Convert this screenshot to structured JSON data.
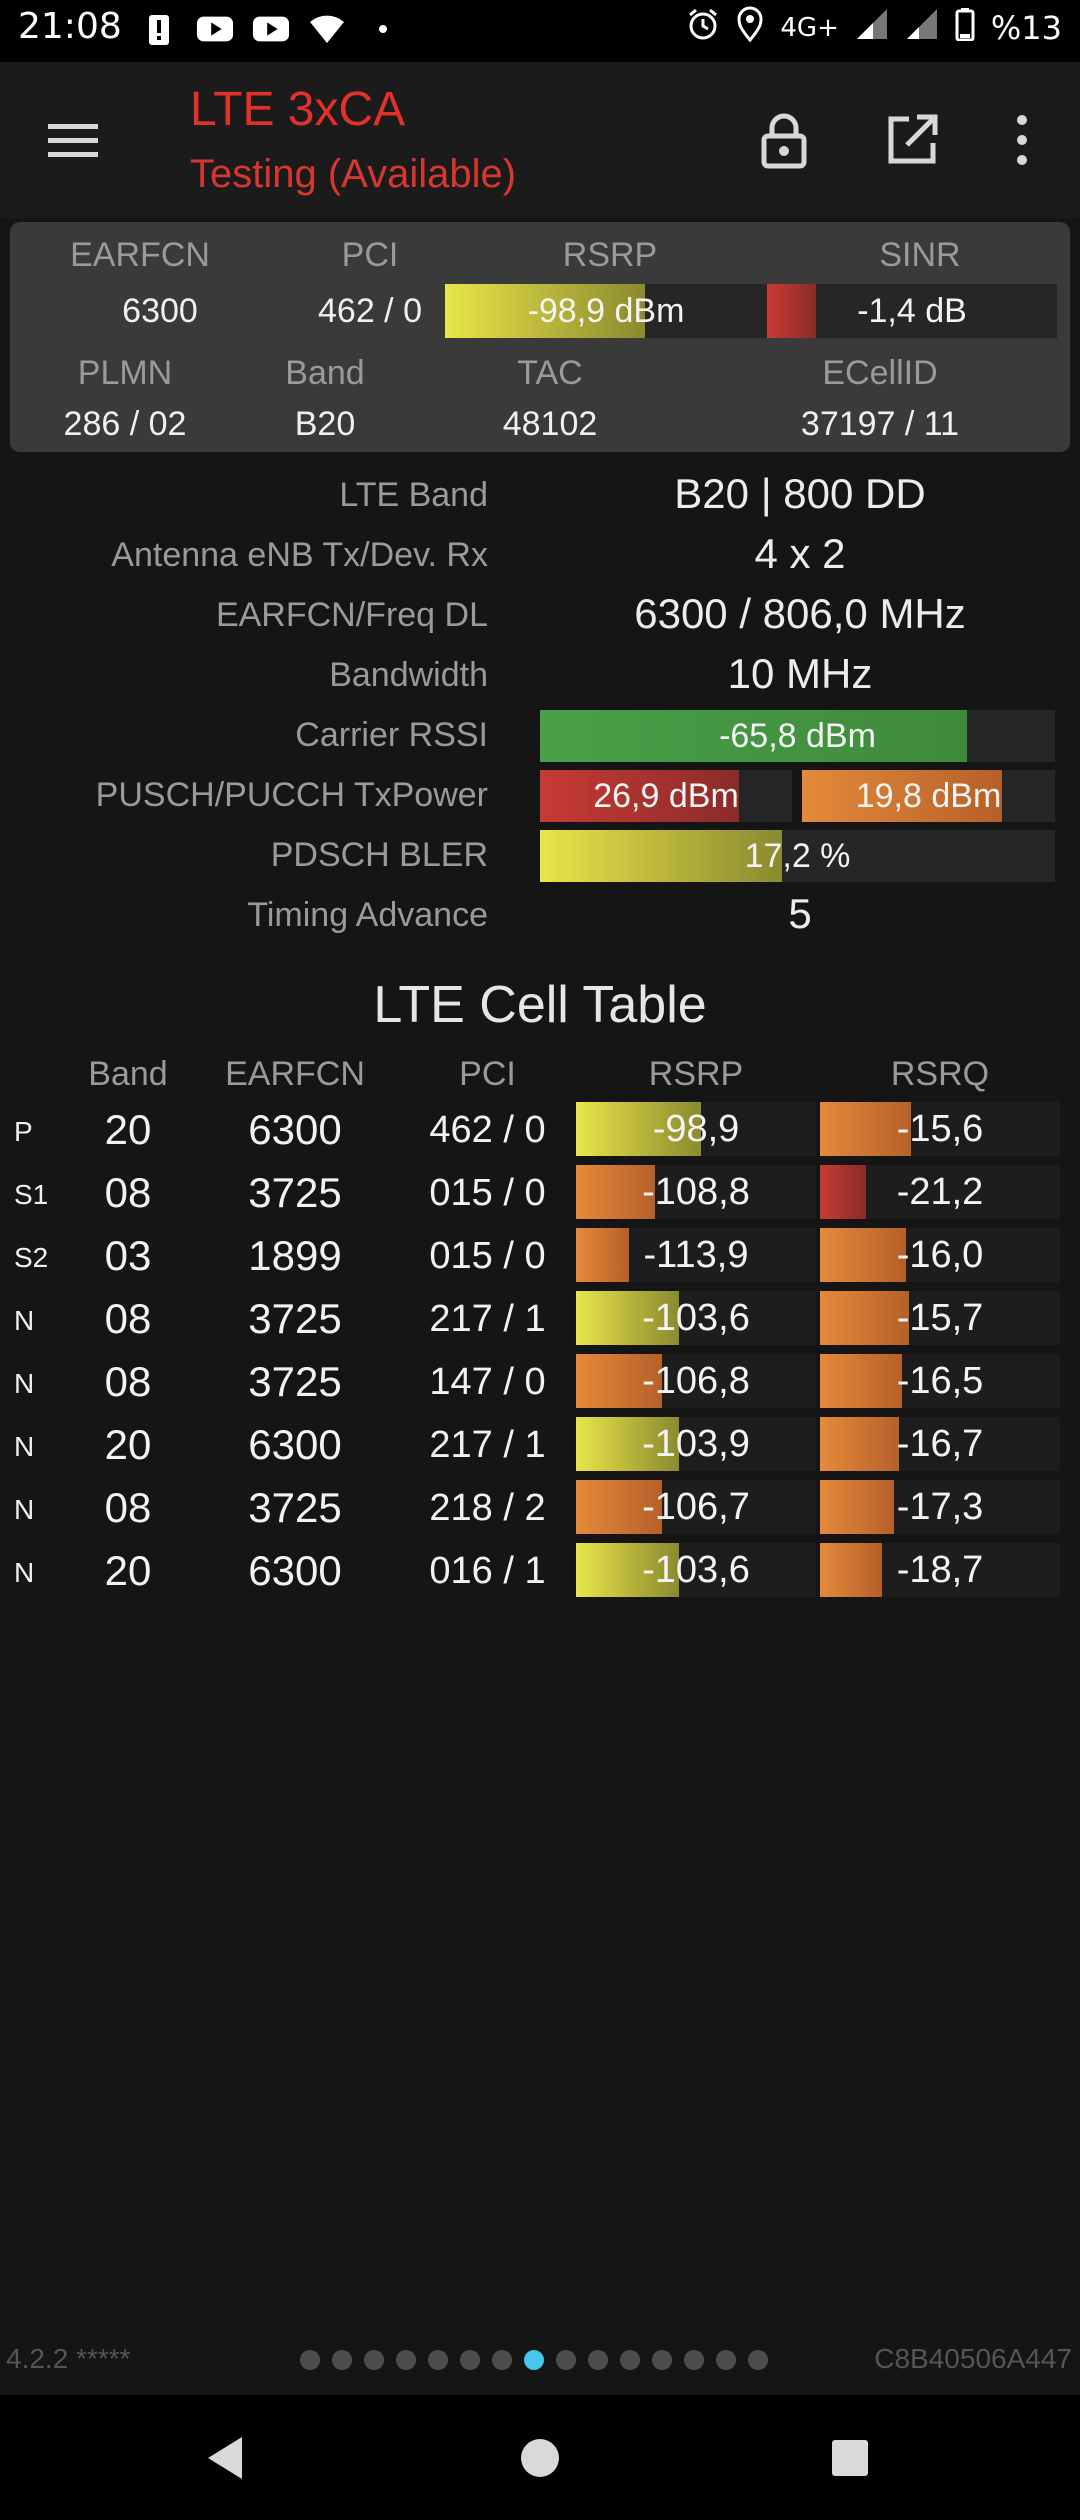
{
  "status_bar": {
    "time": "21:08",
    "network": "4G+",
    "battery": "%13",
    "left_icons": [
      "alert-icon",
      "youtube-icon",
      "youtube-icon",
      "wifi-icon",
      "dot-icon"
    ],
    "right_icons": [
      "alarm-icon",
      "location-icon",
      "signal-icon",
      "signal-icon",
      "battery-icon"
    ]
  },
  "app_bar": {
    "title": "LTE 3xCA",
    "subtitle": "Testing (Available)",
    "accent_color": "#e3302a",
    "icons": [
      "menu-icon",
      "lock-icon",
      "open-external-icon",
      "more-vert-icon"
    ]
  },
  "summary": {
    "labels": {
      "earfcn": "EARFCN",
      "pci": "PCI",
      "rsrp": "RSRP",
      "sinr": "SINR",
      "plmn": "PLMN",
      "band": "Band",
      "tac": "TAC",
      "ecellid": "ECellID"
    },
    "earfcn": "6300",
    "pci": "462 / 0",
    "rsrp": "-98,9 dBm",
    "rsrp_level": 0.62,
    "sinr": "-1,4 dB",
    "sinr_level": 0.17,
    "plmn": "286 / 02",
    "band": "B20",
    "tac": "48102",
    "ecellid": "37197 / 11"
  },
  "details": {
    "lte_band": {
      "label": "LTE Band",
      "value": "B20 | 800 DD"
    },
    "antenna": {
      "label": "Antenna eNB Tx/Dev. Rx",
      "value": "4 x 2"
    },
    "freq": {
      "label": "EARFCN/Freq DL",
      "value": "6300 / 806,0 MHz"
    },
    "bandwidth": {
      "label": "Bandwidth",
      "value": "10 MHz"
    },
    "rssi": {
      "label": "Carrier RSSI",
      "value": "-65,8 dBm",
      "level": 0.83
    },
    "txpower": {
      "label": "PUSCH/PUCCH TxPower",
      "pusch": "26,9 dBm",
      "pusch_level": 0.79,
      "pucch": "19,8 dBm",
      "pucch_level": 0.79
    },
    "bler": {
      "label": "PDSCH BLER",
      "value": "17,2 %",
      "level": 0.47
    },
    "timing_advance": {
      "label": "Timing Advance",
      "value": "5"
    }
  },
  "cell_table": {
    "title": "LTE Cell Table",
    "headers": [
      "Band",
      "EARFCN",
      "PCI",
      "RSRP",
      "RSRQ"
    ],
    "rows": [
      {
        "type": "P",
        "band": "20",
        "earfcn": "6300",
        "pci": "462 / 0",
        "rsrp": "-98,9",
        "rsrp_level": 0.52,
        "rsrp_color": "yellow",
        "rsrq": "-15,6",
        "rsrq_level": 0.38,
        "rsrq_color": "orange"
      },
      {
        "type": "S1",
        "band": "08",
        "earfcn": "3725",
        "pci": "015 / 0",
        "rsrp": "-108,8",
        "rsrp_level": 0.33,
        "rsrp_color": "orange",
        "rsrq": "-21,2",
        "rsrq_level": 0.19,
        "rsrq_color": "red"
      },
      {
        "type": "S2",
        "band": "03",
        "earfcn": "1899",
        "pci": "015 / 0",
        "rsrp": "-113,9",
        "rsrp_level": 0.22,
        "rsrp_color": "orange",
        "rsrq": "-16,0",
        "rsrq_level": 0.36,
        "rsrq_color": "orange"
      },
      {
        "type": "N",
        "band": "08",
        "earfcn": "3725",
        "pci": "217 / 1",
        "rsrp": "-103,6",
        "rsrp_level": 0.43,
        "rsrp_color": "yellow",
        "rsrq": "-15,7",
        "rsrq_level": 0.37,
        "rsrq_color": "orange"
      },
      {
        "type": "N",
        "band": "08",
        "earfcn": "3725",
        "pci": "147 / 0",
        "rsrp": "-106,8",
        "rsrp_level": 0.36,
        "rsrp_color": "orange",
        "rsrq": "-16,5",
        "rsrq_level": 0.34,
        "rsrq_color": "orange"
      },
      {
        "type": "N",
        "band": "20",
        "earfcn": "6300",
        "pci": "217 / 1",
        "rsrp": "-103,9",
        "rsrp_level": 0.43,
        "rsrp_color": "yellow",
        "rsrq": "-16,7",
        "rsrq_level": 0.33,
        "rsrq_color": "orange"
      },
      {
        "type": "N",
        "band": "08",
        "earfcn": "3725",
        "pci": "218 / 2",
        "rsrp": "-106,7",
        "rsrp_level": 0.36,
        "rsrp_color": "orange",
        "rsrq": "-17,3",
        "rsrq_level": 0.31,
        "rsrq_color": "orange"
      },
      {
        "type": "N",
        "band": "20",
        "earfcn": "6300",
        "pci": "016 / 1",
        "rsrp": "-103,6",
        "rsrp_level": 0.43,
        "rsrp_color": "yellow",
        "rsrq": "-18,7",
        "rsrq_level": 0.26,
        "rsrq_color": "orange"
      }
    ]
  },
  "footer": {
    "version": "4.2.2 *****",
    "device_id": "C8B40506A447",
    "page_count": 15,
    "active_page": 7
  },
  "nav_bar": {
    "icons": [
      "back-icon",
      "home-icon",
      "recents-icon"
    ]
  }
}
